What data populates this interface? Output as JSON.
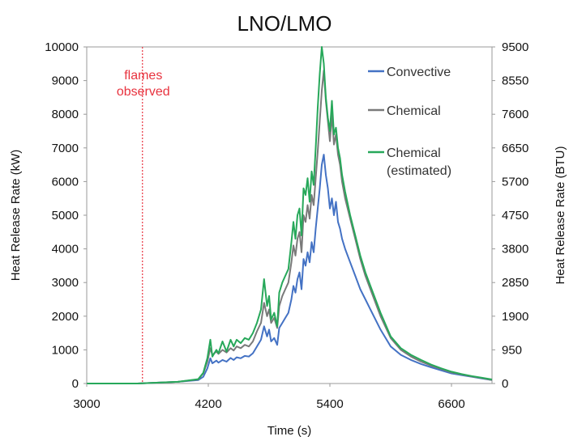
{
  "chart_data": {
    "type": "line",
    "title": "LNO/LMO",
    "xlabel": "Time (s)",
    "ylabel": "Heat Release Rate (kW)",
    "y2label": "Heat Release Rate (BTU)",
    "xlim": [
      3000,
      7000
    ],
    "ylim": [
      0,
      10000
    ],
    "y2lim": [
      0,
      9500
    ],
    "x_ticks": [
      3000,
      4200,
      5400,
      6600
    ],
    "y_ticks": [
      0,
      1000,
      2000,
      3000,
      4000,
      5000,
      6000,
      7000,
      8000,
      9000,
      10000
    ],
    "y2_ticks": [
      0,
      950,
      1900,
      2850,
      3800,
      4750,
      5700,
      6650,
      7600,
      8550,
      9500
    ],
    "grid": false,
    "legend_position": "top-right",
    "annotation": {
      "lines": [
        "flames",
        "observed"
      ],
      "x": 3550,
      "color": "#e8333f"
    },
    "series": [
      {
        "name": "Convective",
        "color": "#4472c4",
        "x": [
          3000,
          3500,
          3900,
          4100,
          4150,
          4190,
          4220,
          4240,
          4280,
          4300,
          4340,
          4380,
          4420,
          4450,
          4480,
          4520,
          4560,
          4600,
          4640,
          4680,
          4720,
          4750,
          4780,
          4800,
          4820,
          4850,
          4880,
          4900,
          4930,
          4960,
          4990,
          5020,
          5040,
          5060,
          5080,
          5100,
          5120,
          5140,
          5160,
          5180,
          5200,
          5220,
          5240,
          5260,
          5280,
          5300,
          5320,
          5340,
          5360,
          5380,
          5400,
          5420,
          5440,
          5460,
          5480,
          5500,
          5520,
          5550,
          5600,
          5650,
          5700,
          5750,
          5800,
          5900,
          6000,
          6100,
          6200,
          6300,
          6400,
          6500,
          6600,
          6700,
          6800,
          6900,
          7000
        ],
        "values": [
          0,
          0,
          50,
          100,
          200,
          450,
          750,
          600,
          680,
          620,
          700,
          650,
          760,
          700,
          780,
          750,
          820,
          800,
          900,
          1100,
          1300,
          1700,
          1400,
          1600,
          1250,
          1350,
          1150,
          1650,
          1800,
          1950,
          2100,
          2500,
          2900,
          2700,
          3100,
          3300,
          2800,
          3700,
          3500,
          3900,
          3600,
          4200,
          3900,
          4600,
          5200,
          5800,
          6500,
          6800,
          6200,
          5800,
          5200,
          5500,
          5000,
          5400,
          4800,
          4600,
          4300,
          4000,
          3600,
          3200,
          2800,
          2500,
          2200,
          1600,
          1100,
          850,
          700,
          580,
          480,
          390,
          300,
          250,
          200,
          150,
          100
        ]
      },
      {
        "name": "Chemical",
        "color": "#7a7a7a",
        "x": [
          3000,
          3500,
          3900,
          4100,
          4150,
          4190,
          4220,
          4240,
          4280,
          4300,
          4340,
          4380,
          4420,
          4450,
          4480,
          4520,
          4560,
          4600,
          4640,
          4680,
          4720,
          4750,
          4780,
          4800,
          4820,
          4850,
          4880,
          4900,
          4930,
          4960,
          4990,
          5020,
          5040,
          5060,
          5080,
          5100,
          5120,
          5140,
          5160,
          5180,
          5200,
          5220,
          5240,
          5260,
          5280,
          5300,
          5320,
          5340,
          5360,
          5380,
          5400,
          5420,
          5440,
          5460,
          5480,
          5500,
          5520,
          5550,
          5600,
          5650,
          5700,
          5750,
          5800,
          5900,
          6000,
          6100,
          6200,
          6300,
          6400,
          6500,
          6600,
          6700,
          6800,
          6900,
          7000
        ],
        "values": [
          0,
          0,
          50,
          120,
          300,
          650,
          1050,
          850,
          950,
          880,
          1000,
          920,
          1050,
          980,
          1100,
          1050,
          1150,
          1100,
          1250,
          1550,
          1800,
          2400,
          2000,
          2200,
          1800,
          1950,
          1650,
          2300,
          2600,
          2800,
          3000,
          3600,
          4100,
          3800,
          4300,
          4500,
          3900,
          5000,
          4800,
          5300,
          4900,
          5600,
          5300,
          6100,
          6900,
          7800,
          8700,
          9300,
          8400,
          7800,
          7200,
          8000,
          7100,
          7400,
          6800,
          6500,
          6000,
          5500,
          4900,
          4300,
          3700,
          3200,
          2800,
          2000,
          1350,
          1000,
          800,
          650,
          530,
          430,
          330,
          270,
          210,
          160,
          100
        ]
      },
      {
        "name": "Chemical (estimated)",
        "color": "#27a85a",
        "x": [
          3000,
          3500,
          3900,
          4100,
          4150,
          4190,
          4220,
          4240,
          4280,
          4300,
          4340,
          4380,
          4420,
          4450,
          4480,
          4520,
          4560,
          4600,
          4640,
          4680,
          4720,
          4750,
          4780,
          4800,
          4820,
          4850,
          4880,
          4900,
          4930,
          4960,
          4990,
          5020,
          5040,
          5060,
          5080,
          5100,
          5120,
          5140,
          5160,
          5180,
          5200,
          5220,
          5240,
          5260,
          5280,
          5300,
          5320,
          5340,
          5360,
          5380,
          5400,
          5420,
          5440,
          5460,
          5480,
          5500,
          5520,
          5550,
          5600,
          5650,
          5700,
          5750,
          5800,
          5900,
          6000,
          6100,
          6200,
          6300,
          6400,
          6500,
          6600,
          6700,
          6800,
          6900,
          7000
        ],
        "values": [
          0,
          0,
          50,
          130,
          320,
          750,
          1300,
          800,
          1000,
          900,
          1250,
          950,
          1300,
          1100,
          1300,
          1200,
          1350,
          1300,
          1500,
          1800,
          2200,
          3100,
          2300,
          2600,
          1900,
          2100,
          1700,
          2700,
          3000,
          3200,
          3400,
          4200,
          4800,
          4300,
          5000,
          5200,
          4400,
          5800,
          5600,
          6100,
          5400,
          6300,
          5900,
          7000,
          8200,
          9200,
          10000,
          9500,
          8500,
          7900,
          7500,
          8400,
          7400,
          7600,
          7000,
          6700,
          6200,
          5700,
          5000,
          4400,
          3800,
          3300,
          2900,
          2100,
          1400,
          1050,
          850,
          700,
          560,
          450,
          350,
          280,
          220,
          170,
          120
        ]
      }
    ]
  }
}
